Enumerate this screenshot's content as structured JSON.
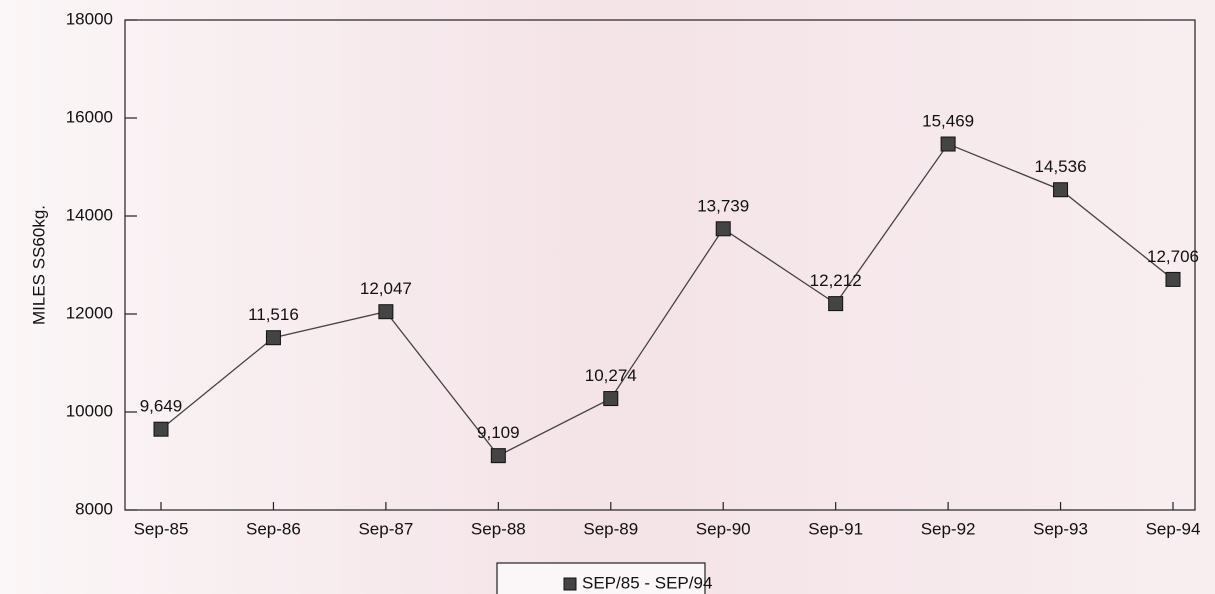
{
  "chart_data": {
    "type": "line",
    "y_label": "MILES SS60kg.",
    "categories": [
      "Sep-85",
      "Sep-86",
      "Sep-87",
      "Sep-88",
      "Sep-89",
      "Sep-90",
      "Sep-91",
      "Sep-92",
      "Sep-93",
      "Sep-94"
    ],
    "series": [
      {
        "name": "SEP/85 - SEP/94",
        "color": "#444444",
        "values": [
          9649,
          11516,
          12047,
          9109,
          10274,
          13739,
          12212,
          15469,
          14536,
          12706
        ],
        "value_labels": [
          "9,649",
          "11,516",
          "12,047",
          "9,109",
          "10,274",
          "13,739",
          "12,212",
          "15,469",
          "14,536",
          "12,706"
        ]
      }
    ],
    "ylim": [
      8000,
      18000
    ],
    "yticks": [
      8000,
      10000,
      12000,
      14000,
      16000,
      18000
    ],
    "legend": "bottom"
  }
}
